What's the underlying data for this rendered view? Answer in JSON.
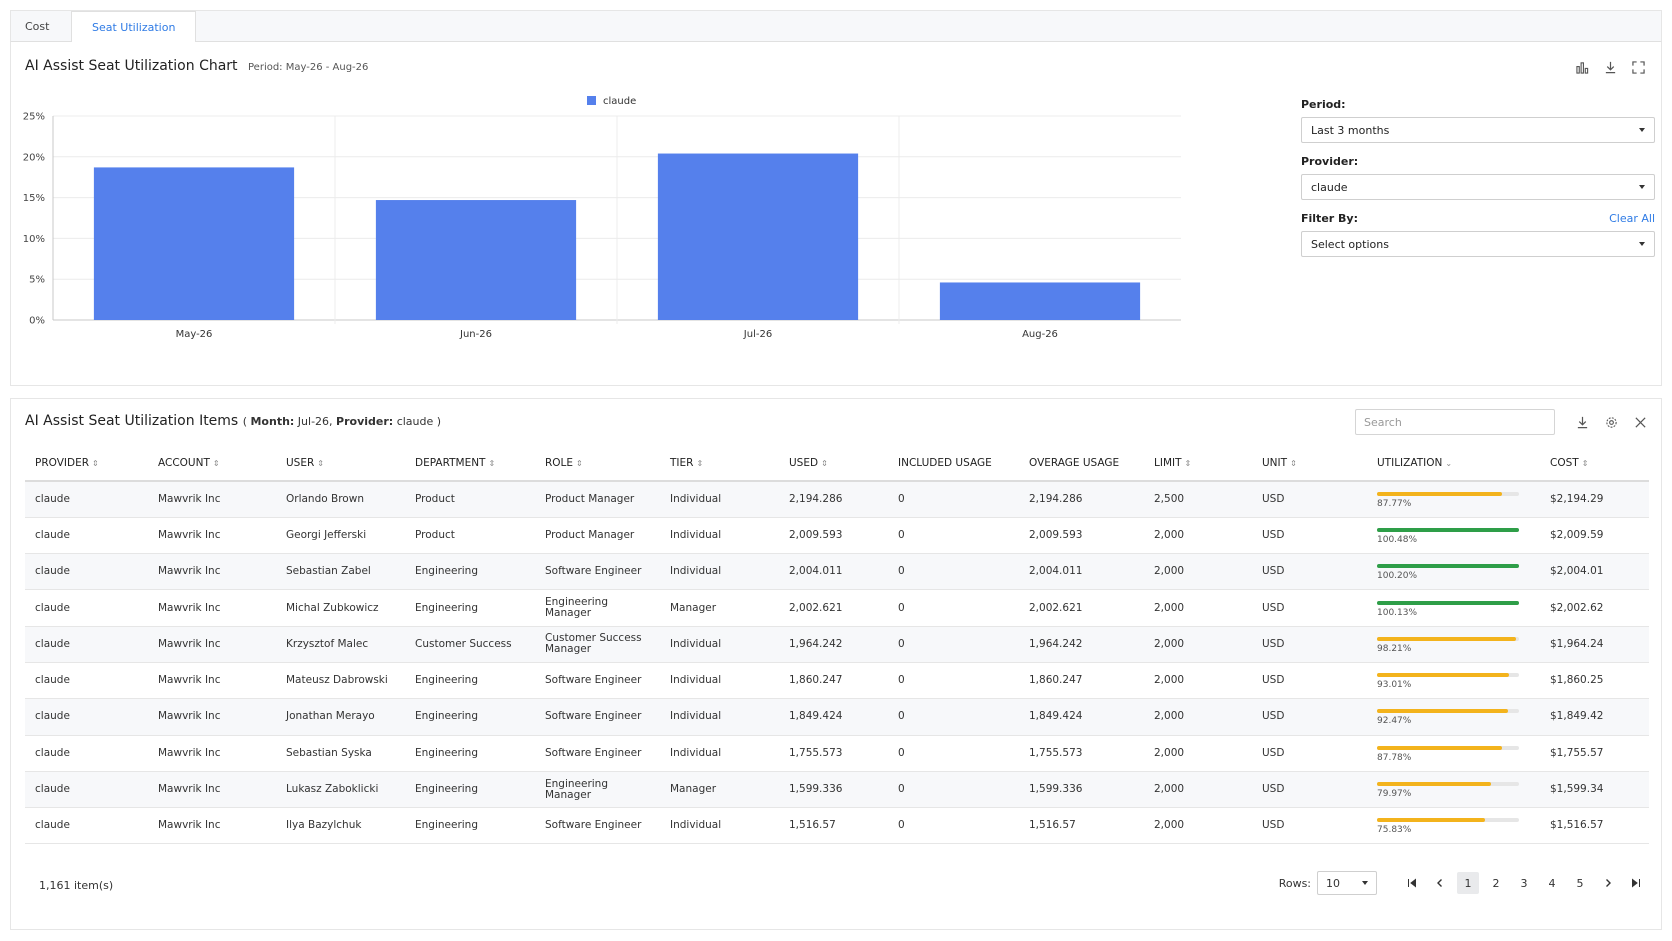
{
  "tabs": [
    {
      "label": "Cost",
      "active": false
    },
    {
      "label": "Seat Utilization",
      "active": true
    }
  ],
  "chart_panel": {
    "title": "AI Assist Seat Utilization Chart",
    "period_label": "Period: May-26 - Aug-26"
  },
  "chart_data": {
    "type": "bar",
    "categories": [
      "May-26",
      "Jun-26",
      "Jul-26",
      "Aug-26"
    ],
    "series": [
      {
        "name": "claude",
        "values": [
          18.7,
          14.7,
          20.4,
          4.6
        ],
        "color": "#5580ec"
      }
    ],
    "ylim": [
      0,
      25
    ],
    "yticks": [
      0,
      5,
      10,
      15,
      20,
      25
    ],
    "ytick_labels": [
      "0%",
      "5%",
      "10%",
      "15%",
      "20%",
      "25%"
    ],
    "grid": true,
    "legend": "top-center"
  },
  "filters": {
    "period_label": "Period:",
    "period_value": "Last 3 months",
    "provider_label": "Provider:",
    "provider_value": "claude",
    "filter_label": "Filter By:",
    "clear_all": "Clear All",
    "filter_placeholder": "Select options"
  },
  "table_panel": {
    "title": "AI Assist Seat Utilization Items",
    "sub_open": "( ",
    "month_label": "Month:",
    "month_value": " Jul-26, ",
    "provider_label": "Provider:",
    "provider_value": " claude )",
    "search_placeholder": "Search"
  },
  "columns": [
    {
      "label": "PROVIDER",
      "sort": "⇕"
    },
    {
      "label": "ACCOUNT",
      "sort": "⇕"
    },
    {
      "label": "USER",
      "sort": "⇕"
    },
    {
      "label": "DEPARTMENT",
      "sort": "⇕"
    },
    {
      "label": "ROLE",
      "sort": "⇕"
    },
    {
      "label": "TIER",
      "sort": "⇕"
    },
    {
      "label": "USED",
      "sort": "⇕"
    },
    {
      "label": "INCLUDED USAGE",
      "sort": ""
    },
    {
      "label": "OVERAGE USAGE",
      "sort": ""
    },
    {
      "label": "LIMIT",
      "sort": "⇕"
    },
    {
      "label": "UNIT",
      "sort": "⇕"
    },
    {
      "label": "UTILIZATION",
      "sort": "⌄"
    },
    {
      "label": "COST",
      "sort": "⇕"
    }
  ],
  "rows": [
    {
      "provider": "claude",
      "account": "Mawvrik Inc",
      "user": "Orlando Brown",
      "department": "Product",
      "role": "Product Manager",
      "tier": "Individual",
      "used": "2,194.286",
      "included": "0",
      "overage": "2,194.286",
      "limit": "2,500",
      "unit": "USD",
      "util_pct": "87.77%",
      "util": 0.8777,
      "util_color": "#f3b31c",
      "cost": "$2,194.29"
    },
    {
      "provider": "claude",
      "account": "Mawvrik Inc",
      "user": "Georgi Jefferski",
      "department": "Product",
      "role": "Product Manager",
      "tier": "Individual",
      "used": "2,009.593",
      "included": "0",
      "overage": "2,009.593",
      "limit": "2,000",
      "unit": "USD",
      "util_pct": "100.48%",
      "util": 1.0,
      "util_color": "#2e9e48",
      "cost": "$2,009.59"
    },
    {
      "provider": "claude",
      "account": "Mawvrik Inc",
      "user": "Sebastian Zabel",
      "department": "Engineering",
      "role": "Software Engineer",
      "tier": "Individual",
      "used": "2,004.011",
      "included": "0",
      "overage": "2,004.011",
      "limit": "2,000",
      "unit": "USD",
      "util_pct": "100.20%",
      "util": 1.0,
      "util_color": "#2e9e48",
      "cost": "$2,004.01"
    },
    {
      "provider": "claude",
      "account": "Mawvrik Inc",
      "user": "Michal Zubkowicz",
      "department": "Engineering",
      "role": "Engineering Manager",
      "tier": "Manager",
      "used": "2,002.621",
      "included": "0",
      "overage": "2,002.621",
      "limit": "2,000",
      "unit": "USD",
      "util_pct": "100.13%",
      "util": 1.0,
      "util_color": "#2e9e48",
      "cost": "$2,002.62"
    },
    {
      "provider": "claude",
      "account": "Mawvrik Inc",
      "user": "Krzysztof Malec",
      "department": "Customer Success",
      "role": "Customer Success Manager",
      "tier": "Individual",
      "used": "1,964.242",
      "included": "0",
      "overage": "1,964.242",
      "limit": "2,000",
      "unit": "USD",
      "util_pct": "98.21%",
      "util": 0.9821,
      "util_color": "#f3b31c",
      "cost": "$1,964.24"
    },
    {
      "provider": "claude",
      "account": "Mawvrik Inc",
      "user": "Mateusz Dabrowski",
      "department": "Engineering",
      "role": "Software Engineer",
      "tier": "Individual",
      "used": "1,860.247",
      "included": "0",
      "overage": "1,860.247",
      "limit": "2,000",
      "unit": "USD",
      "util_pct": "93.01%",
      "util": 0.9301,
      "util_color": "#f3b31c",
      "cost": "$1,860.25"
    },
    {
      "provider": "claude",
      "account": "Mawvrik Inc",
      "user": "Jonathan Merayo",
      "department": "Engineering",
      "role": "Software Engineer",
      "tier": "Individual",
      "used": "1,849.424",
      "included": "0",
      "overage": "1,849.424",
      "limit": "2,000",
      "unit": "USD",
      "util_pct": "92.47%",
      "util": 0.9247,
      "util_color": "#f3b31c",
      "cost": "$1,849.42"
    },
    {
      "provider": "claude",
      "account": "Mawvrik Inc",
      "user": "Sebastian Syska",
      "department": "Engineering",
      "role": "Software Engineer",
      "tier": "Individual",
      "used": "1,755.573",
      "included": "0",
      "overage": "1,755.573",
      "limit": "2,000",
      "unit": "USD",
      "util_pct": "87.78%",
      "util": 0.8778,
      "util_color": "#f3b31c",
      "cost": "$1,755.57"
    },
    {
      "provider": "claude",
      "account": "Mawvrik Inc",
      "user": "Lukasz Zaboklicki",
      "department": "Engineering",
      "role": "Engineering Manager",
      "tier": "Manager",
      "used": "1,599.336",
      "included": "0",
      "overage": "1,599.336",
      "limit": "2,000",
      "unit": "USD",
      "util_pct": "79.97%",
      "util": 0.7997,
      "util_color": "#f3b31c",
      "cost": "$1,599.34"
    },
    {
      "provider": "claude",
      "account": "Mawvrik Inc",
      "user": "Ilya Bazylchuk",
      "department": "Engineering",
      "role": "Software Engineer",
      "tier": "Individual",
      "used": "1,516.57",
      "included": "0",
      "overage": "1,516.57",
      "limit": "2,000",
      "unit": "USD",
      "util_pct": "75.83%",
      "util": 0.7583,
      "util_color": "#f3b31c",
      "cost": "$1,516.57"
    }
  ],
  "footer": {
    "item_count": "1,161 item(s)",
    "rows_label": "Rows:",
    "rows_value": "10",
    "pages": [
      "1",
      "2",
      "3",
      "4",
      "5"
    ],
    "active_page": "1"
  }
}
